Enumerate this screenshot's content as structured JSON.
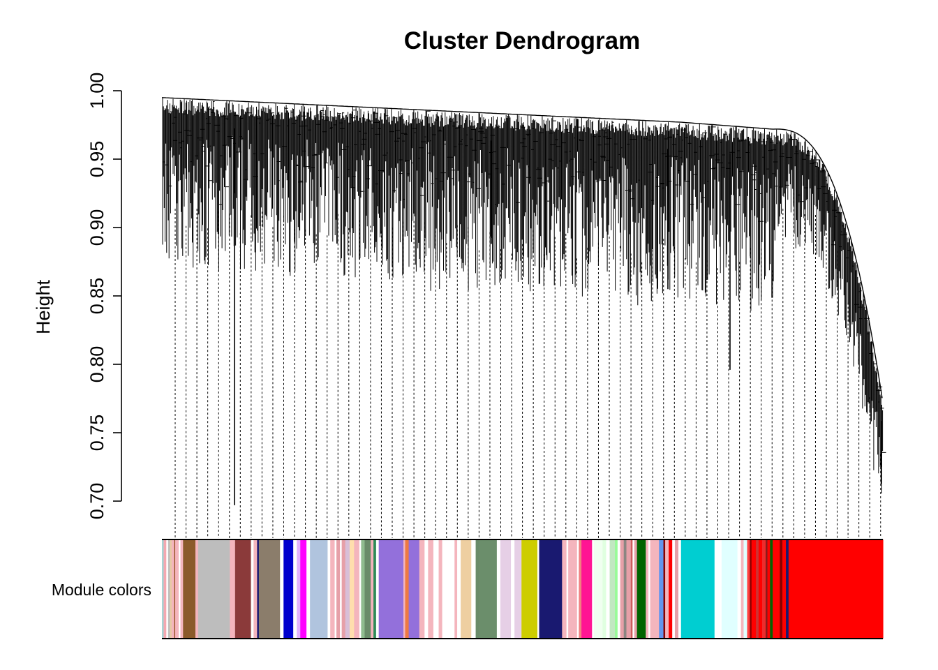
{
  "chart_data": {
    "type": "dendrogram",
    "title": "Cluster Dendrogram",
    "xlabel": "",
    "ylabel": "Height",
    "ylim": [
      0.7,
      1.0
    ],
    "yticks": [
      "0.70",
      "0.75",
      "0.80",
      "0.85",
      "0.90",
      "0.95",
      "1.00"
    ],
    "color_bar_label": "Module colors",
    "branch_cutoffs": [
      0.99,
      0.985,
      0.98,
      0.972,
      0.97
    ],
    "notable_merge_heights": [
      0.697,
      0.888,
      0.855,
      0.796,
      0.725
    ],
    "modules": [
      {
        "color": "#a7d3d4",
        "width": 2
      },
      {
        "color": "#f4a7b0",
        "width": 3
      },
      {
        "color": "#ffffff",
        "width": 2
      },
      {
        "color": "#bdbdbd",
        "width": 2
      },
      {
        "color": "#e9c9a3",
        "width": 2
      },
      {
        "color": "#f4b5bd",
        "width": 3
      },
      {
        "color": "#8b4513",
        "width": 1
      },
      {
        "color": "#f4b5bd",
        "width": 4
      },
      {
        "color": "#ffffff",
        "width": 2
      },
      {
        "color": "#f4b5bd",
        "width": 3
      },
      {
        "color": "#8b5a2b",
        "width": 14
      },
      {
        "color": "#f4b5bd",
        "width": 3
      },
      {
        "color": "#bdbdbd",
        "width": 36
      },
      {
        "color": "#f4b5bd",
        "width": 6
      },
      {
        "color": "#8b3a3a",
        "width": 18
      },
      {
        "color": "#ffffff",
        "width": 3
      },
      {
        "color": "#f4b5bd",
        "width": 4
      },
      {
        "color": "#191970",
        "width": 2
      },
      {
        "color": "#8b7d6b",
        "width": 24
      },
      {
        "color": "#ffffff",
        "width": 4
      },
      {
        "color": "#0000cd",
        "width": 11
      },
      {
        "color": "#ffffff",
        "width": 4
      },
      {
        "color": "#e3b2ff",
        "width": 4
      },
      {
        "color": "#ff00ff",
        "width": 7
      },
      {
        "color": "#ffffff",
        "width": 4
      },
      {
        "color": "#b0c4de",
        "width": 20
      },
      {
        "color": "#ffffff",
        "width": 3
      },
      {
        "color": "#f4b5bd",
        "width": 5
      },
      {
        "color": "#ffffff",
        "width": 2
      },
      {
        "color": "#e6a0a8",
        "width": 4
      },
      {
        "color": "#ffffff",
        "width": 2
      },
      {
        "color": "#e6a0a8",
        "width": 4
      },
      {
        "color": "#d8bfd8",
        "width": 5
      },
      {
        "color": "#ffdead",
        "width": 5
      },
      {
        "color": "#f4b5bd",
        "width": 6
      },
      {
        "color": "#ffffff",
        "width": 2
      },
      {
        "color": "#8fbc8f",
        "width": 4
      },
      {
        "color": "#698b69",
        "width": 7
      },
      {
        "color": "#f4b5bd",
        "width": 3
      },
      {
        "color": "#2e8b57",
        "width": 3
      },
      {
        "color": "#ffffff",
        "width": 3
      },
      {
        "color": "#9370db",
        "width": 28
      },
      {
        "color": "#f4b5bd",
        "width": 2
      },
      {
        "color": "#ee7942",
        "width": 4
      },
      {
        "color": "#9370db",
        "width": 12
      },
      {
        "color": "#f4b5bd",
        "width": 6
      },
      {
        "color": "#ffffff",
        "width": 4
      },
      {
        "color": "#f4b5bd",
        "width": 6
      },
      {
        "color": "#ffffff",
        "width": 6
      },
      {
        "color": "#f4b5bd",
        "width": 4
      },
      {
        "color": "#ffffff",
        "width": 14
      },
      {
        "color": "#f4b5bd",
        "width": 3
      },
      {
        "color": "#ffffff",
        "width": 4
      },
      {
        "color": "#eecfa1",
        "width": 12
      },
      {
        "color": "#ffffff",
        "width": 5
      },
      {
        "color": "#698b69",
        "width": 4
      },
      {
        "color": "#6b8e6b",
        "width": 20
      },
      {
        "color": "#ffffff",
        "width": 4
      },
      {
        "color": "#e6cfe6",
        "width": 12
      },
      {
        "color": "#ffffff",
        "width": 4
      },
      {
        "color": "#e6cfe6",
        "width": 8
      },
      {
        "color": "#cdcd00",
        "width": 18
      },
      {
        "color": "#ffffff",
        "width": 2
      },
      {
        "color": "#191970",
        "width": 26
      },
      {
        "color": "#f4b5bd",
        "width": 5
      },
      {
        "color": "#ffffff",
        "width": 2
      },
      {
        "color": "#f4b5bd",
        "width": 10
      },
      {
        "color": "#ffffff",
        "width": 2
      },
      {
        "color": "#f08080",
        "width": 3
      },
      {
        "color": "#ff1493",
        "width": 12
      },
      {
        "color": "#ffffff",
        "width": 2
      },
      {
        "color": "#f0fff0",
        "width": 10
      },
      {
        "color": "#e0ffe0",
        "width": 4
      },
      {
        "color": "#ffffff",
        "width": 4
      },
      {
        "color": "#c1e8c1",
        "width": 6
      },
      {
        "color": "#98fb98",
        "width": 3
      },
      {
        "color": "#ffffff",
        "width": 3
      },
      {
        "color": "#e6a0a8",
        "width": 4
      },
      {
        "color": "#8b8682",
        "width": 3
      },
      {
        "color": "#e6a0a8",
        "width": 5
      },
      {
        "color": "#cd5c5c",
        "width": 2
      },
      {
        "color": "#ffffff",
        "width": 2
      },
      {
        "color": "#e6a0a8",
        "width": 3
      },
      {
        "color": "#006400",
        "width": 10
      },
      {
        "color": "#f4b5bd",
        "width": 3
      },
      {
        "color": "#ffffff",
        "width": 2
      },
      {
        "color": "#f4b5bd",
        "width": 10
      },
      {
        "color": "#6495ed",
        "width": 5
      },
      {
        "color": "#8b0000",
        "width": 2
      },
      {
        "color": "#f4b5bd",
        "width": 4
      },
      {
        "color": "#ff0000",
        "width": 4
      },
      {
        "color": "#ffffff",
        "width": 3
      },
      {
        "color": "#e6a0a8",
        "width": 4
      },
      {
        "color": "#ffffff",
        "width": 3
      },
      {
        "color": "#00ced1",
        "width": 38
      },
      {
        "color": "#ffffff",
        "width": 8
      },
      {
        "color": "#e0ffff",
        "width": 18
      },
      {
        "color": "#ffffff",
        "width": 4
      },
      {
        "color": "#f4b5bd",
        "width": 3
      },
      {
        "color": "#e0ffff",
        "width": 4
      },
      {
        "color": "#ff4040",
        "width": 3
      },
      {
        "color": "#8b0000",
        "width": 2
      },
      {
        "color": "#ff0000",
        "width": 5
      },
      {
        "color": "#cd3333",
        "width": 3
      },
      {
        "color": "#ff0000",
        "width": 4
      },
      {
        "color": "#ee2c2c",
        "width": 4
      },
      {
        "color": "#8b1a1a",
        "width": 2
      },
      {
        "color": "#ff0000",
        "width": 3
      },
      {
        "color": "#006400",
        "width": 3
      },
      {
        "color": "#ff0000",
        "width": 8
      },
      {
        "color": "#8b0000",
        "width": 3
      },
      {
        "color": "#ff0000",
        "width": 4
      },
      {
        "color": "#191970",
        "width": 3
      },
      {
        "color": "#ff0000",
        "width": 107
      }
    ]
  }
}
